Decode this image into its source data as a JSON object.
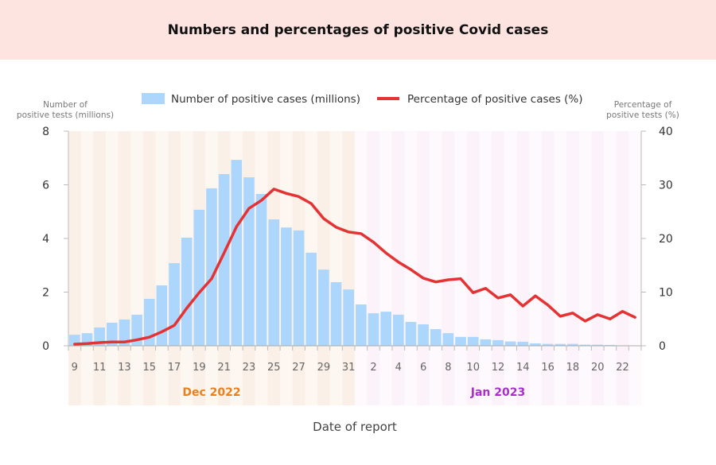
{
  "chart_data": {
    "type": "bar+line",
    "title": "Numbers and percentages of positive Covid cases",
    "xlabel": "Date of report",
    "ylabel_left": [
      "Number of",
      "positive tests (millions)"
    ],
    "ylabel_right": [
      "Percentage of",
      "positive tests (%)"
    ],
    "ylim_left": [
      0,
      8
    ],
    "ylim_right": [
      0,
      40
    ],
    "yticks_left": [
      0,
      2,
      4,
      6,
      8
    ],
    "yticks_right": [
      0,
      10,
      20,
      30,
      40
    ],
    "month_labels": [
      {
        "label": "Dec 2022",
        "color": "#e8801e"
      },
      {
        "label": "Jan 2023",
        "color": "#a830c8"
      }
    ],
    "x_days": [
      9,
      10,
      11,
      12,
      13,
      14,
      15,
      16,
      17,
      18,
      19,
      20,
      21,
      22,
      23,
      24,
      25,
      26,
      27,
      28,
      29,
      30,
      31,
      1,
      2,
      3,
      4,
      5,
      6,
      7,
      8,
      9,
      10,
      11,
      12,
      13,
      14,
      15,
      16,
      17,
      18,
      19,
      20,
      21,
      22,
      23
    ],
    "x_tick_labels": [
      "9",
      "11",
      "13",
      "15",
      "17",
      "19",
      "21",
      "23",
      "25",
      "27",
      "29",
      "31",
      "2",
      "4",
      "6",
      "8",
      "10",
      "12",
      "14",
      "16",
      "18",
      "20",
      "22"
    ],
    "legend_position": "top",
    "series": [
      {
        "name": "Number of positive cases (millions)",
        "type": "bar",
        "axis": "left",
        "color": "#acd6fb",
        "values": [
          0.41,
          0.47,
          0.68,
          0.86,
          0.98,
          1.16,
          1.75,
          2.25,
          3.08,
          4.03,
          5.07,
          5.87,
          6.4,
          6.93,
          6.28,
          5.66,
          4.71,
          4.41,
          4.3,
          3.47,
          2.84,
          2.37,
          2.1,
          1.54,
          1.21,
          1.27,
          1.16,
          0.89,
          0.8,
          0.62,
          0.47,
          0.33,
          0.33,
          0.24,
          0.21,
          0.16,
          0.15,
          0.09,
          0.07,
          0.07,
          0.07,
          0.04,
          0.04,
          0.03,
          0.01,
          0
        ]
      },
      {
        "name": "Percentage of positive cases (%)",
        "type": "line",
        "axis": "right",
        "color": "#e53232",
        "values": [
          0.3,
          0.4,
          0.6,
          0.7,
          0.7,
          1.1,
          1.6,
          2.6,
          3.8,
          7.0,
          9.9,
          12.5,
          17.3,
          22.2,
          25.6,
          27.1,
          29.2,
          28.4,
          27.8,
          26.5,
          23.7,
          22.1,
          21.2,
          20.9,
          19.3,
          17.3,
          15.6,
          14.2,
          12.6,
          11.9,
          12.3,
          12.5,
          9.9,
          10.7,
          8.9,
          9.5,
          7.4,
          9.3,
          7.6,
          5.5,
          6.1,
          4.6,
          5.8,
          5.0,
          6.4,
          5.3
        ]
      }
    ]
  }
}
